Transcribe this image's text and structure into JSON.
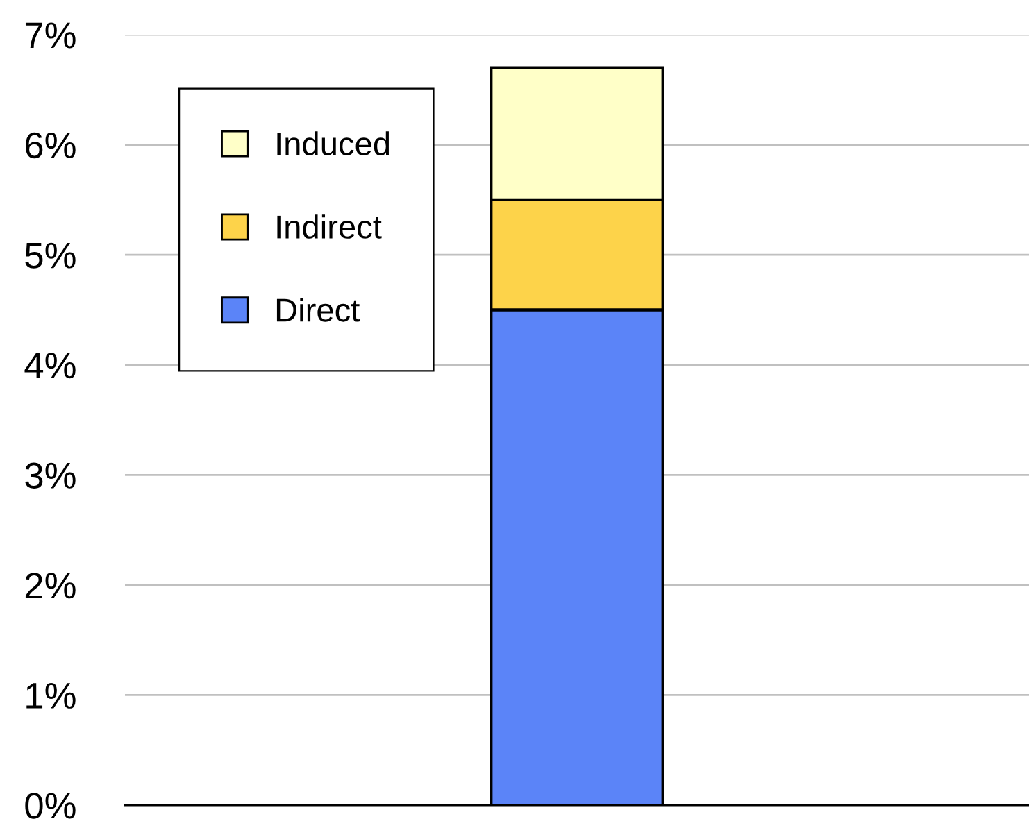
{
  "chart_data": {
    "type": "bar",
    "stacked": true,
    "categories": [
      null
    ],
    "series": [
      {
        "name": "Direct",
        "color": "#5b84f8",
        "values": [
          4.5
        ]
      },
      {
        "name": "Indirect",
        "color": "#fdd34a",
        "values": [
          1.0
        ]
      },
      {
        "name": "Induced",
        "color": "#ffffc8",
        "values": [
          1.2
        ]
      }
    ],
    "ylim": [
      0,
      7
    ],
    "yticks": [
      {
        "value": 0,
        "label": "0%"
      },
      {
        "value": 1,
        "label": "1%"
      },
      {
        "value": 2,
        "label": "2%"
      },
      {
        "value": 3,
        "label": "3%"
      },
      {
        "value": 4,
        "label": "4%"
      },
      {
        "value": 5,
        "label": "5%"
      },
      {
        "value": 6,
        "label": "6%"
      },
      {
        "value": 7,
        "label": "7%"
      }
    ],
    "grid": "y",
    "legend": "top left"
  }
}
